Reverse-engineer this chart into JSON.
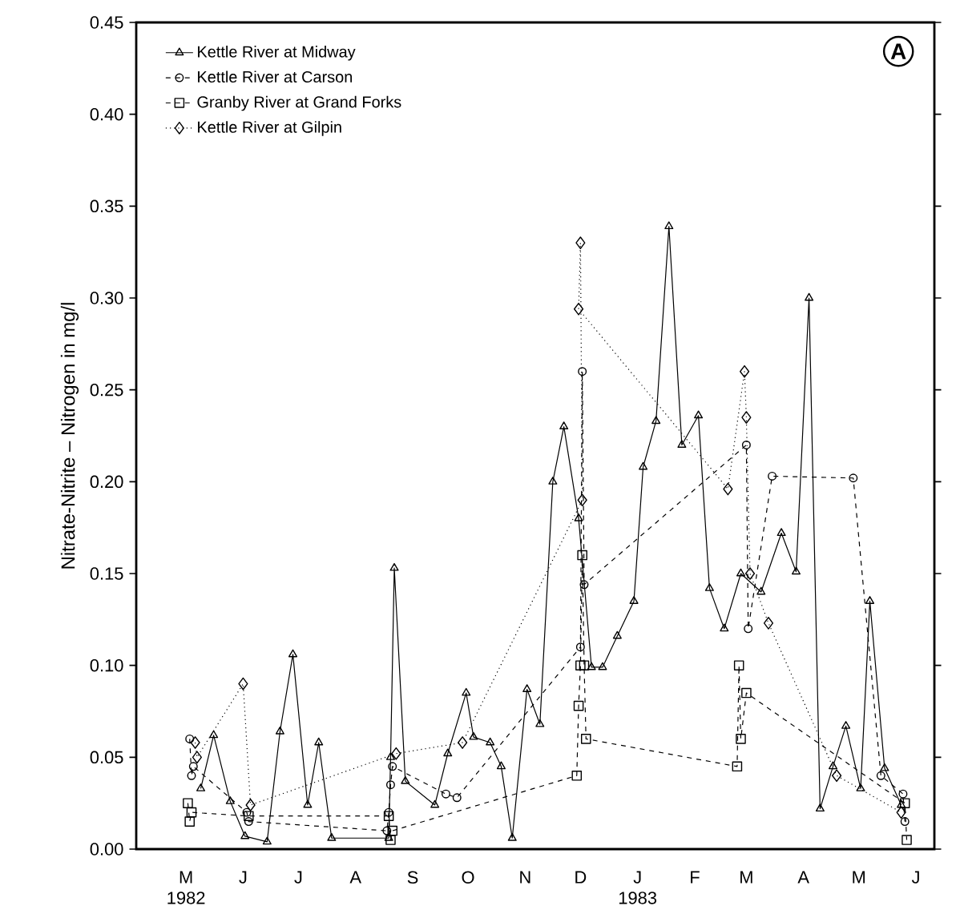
{
  "chart_data": {
    "type": "line",
    "ylabel": "Nitrate-Nitrite – Nitrogen in mg/l",
    "annotations": [
      "A"
    ],
    "xlim": [
      "1982-04-04",
      "1983-06-11"
    ],
    "xticks": [
      {
        "value": "1982-05-01",
        "label": "M 1982"
      },
      {
        "value": "1982-06-01",
        "label": "J"
      },
      {
        "value": "1982-07-01",
        "label": "J"
      },
      {
        "value": "1982-08-01",
        "label": "A"
      },
      {
        "value": "1982-09-01",
        "label": "S"
      },
      {
        "value": "1982-10-01",
        "label": "O"
      },
      {
        "value": "1982-11-01",
        "label": "N"
      },
      {
        "value": "1982-12-01",
        "label": "D"
      },
      {
        "value": "1983-01-01",
        "label": "J 1983"
      },
      {
        "value": "1983-02-01",
        "label": "F"
      },
      {
        "value": "1983-03-01",
        "label": "M"
      },
      {
        "value": "1983-04-01",
        "label": "A"
      },
      {
        "value": "1983-05-01",
        "label": "M"
      },
      {
        "value": "1983-06-01",
        "label": "J"
      }
    ],
    "ylim": [
      0,
      0.45
    ],
    "yticks": [
      {
        "value": 0,
        "label": "0.00"
      },
      0.05,
      {
        "value": 0.1,
        "label": "0.10"
      },
      0.15,
      {
        "value": 0.2,
        "label": "0.20"
      },
      0.25,
      {
        "value": 0.3,
        "label": "0.30"
      },
      0.35,
      {
        "value": 0.4,
        "label": "0.40"
      },
      0.45
    ],
    "legend": "top left",
    "grid": false,
    "series": [
      {
        "name": "Kettle River at Midway",
        "color": "#000000",
        "marker": "triangle",
        "line_style": "solid",
        "x": [
          "1982-05-09",
          "1982-05-16",
          "1982-05-25",
          "1982-06-02",
          "1982-06-14",
          "1982-06-21",
          "1982-06-28",
          "1982-07-06",
          "1982-07-12",
          "1982-07-19",
          "1982-08-19",
          "1982-08-20",
          "1982-08-22",
          "1982-08-28",
          "1982-09-13",
          "1982-09-20",
          "1982-09-30",
          "1982-10-04",
          "1982-10-13",
          "1982-10-19",
          "1982-10-25",
          "1982-11-02",
          "1982-11-09",
          "1982-11-16",
          "1982-11-22",
          "1982-11-30",
          "1982-12-07",
          "1982-12-13",
          "1982-12-21",
          "1982-12-30",
          "1983-01-04",
          "1983-01-11",
          "1983-01-18",
          "1983-01-25",
          "1983-02-03",
          "1983-02-09",
          "1983-02-17",
          "1983-02-26",
          "1983-03-09",
          "1983-03-20",
          "1983-03-28",
          "1983-04-04",
          "1983-04-10",
          "1983-04-17",
          "1983-04-24",
          "1983-05-02",
          "1983-05-07",
          "1983-05-15",
          "1983-05-24"
        ],
        "values": [
          0.033,
          0.062,
          0.026,
          0.007,
          0.004,
          0.064,
          0.106,
          0.024,
          0.058,
          0.006,
          0.006,
          0.05,
          0.153,
          0.037,
          0.024,
          0.052,
          0.085,
          0.061,
          0.058,
          0.045,
          0.006,
          0.087,
          0.068,
          0.2,
          0.23,
          0.18,
          0.099,
          0.099,
          0.116,
          0.135,
          0.208,
          0.233,
          0.339,
          0.22,
          0.236,
          0.142,
          0.12,
          0.15,
          0.14,
          0.172,
          0.151,
          0.3,
          0.022,
          0.045,
          0.067,
          0.033,
          0.135,
          0.044,
          0.024
        ]
      },
      {
        "name": "Kettle River at Carson",
        "color": "#000000",
        "marker": "circle",
        "line_style": "dashed",
        "x": [
          "1982-05-03",
          "1982-05-04",
          "1982-05-05",
          "1982-06-03",
          "1982-06-04",
          "1982-08-18",
          "1982-08-19",
          "1982-08-20",
          "1982-08-21",
          "1982-09-19",
          "1982-09-25",
          "1982-12-01",
          "1982-12-02",
          "1982-12-03",
          "1983-03-01",
          "1983-03-02",
          "1983-03-15",
          "1983-04-28",
          "1983-05-13",
          "1983-05-25",
          "1983-05-26"
        ],
        "values": [
          0.06,
          0.04,
          0.045,
          0.02,
          0.015,
          0.01,
          0.02,
          0.035,
          0.045,
          0.03,
          0.028,
          0.11,
          0.26,
          0.144,
          0.22,
          0.12,
          0.203,
          0.202,
          0.04,
          0.03,
          0.015
        ]
      },
      {
        "name": "Granby River at Grand Forks",
        "color": "#000000",
        "marker": "square",
        "line_style": "dashed",
        "x": [
          "1982-05-02",
          "1982-05-03",
          "1982-05-04",
          "1982-06-04",
          "1982-08-19",
          "1982-08-20",
          "1982-08-21",
          "1982-11-29",
          "1982-11-30",
          "1982-12-01",
          "1982-12-02",
          "1982-12-03",
          "1982-12-04",
          "1983-02-24",
          "1983-02-25",
          "1983-02-26",
          "1983-03-01",
          "1983-05-26",
          "1983-05-27"
        ],
        "values": [
          0.025,
          0.015,
          0.02,
          0.018,
          0.018,
          0.005,
          0.01,
          0.04,
          0.078,
          0.1,
          0.16,
          0.1,
          0.06,
          0.045,
          0.1,
          0.06,
          0.085,
          0.025,
          0.005
        ]
      },
      {
        "name": "Kettle River at Gilpin",
        "color": "#000000",
        "marker": "diamond",
        "line_style": "dotted",
        "x": [
          "1982-05-06",
          "1982-05-07",
          "1982-06-01",
          "1982-06-05",
          "1982-08-23",
          "1982-09-28",
          "1982-12-02",
          "1982-12-01",
          "1982-11-30",
          "1983-02-19",
          "1983-02-28",
          "1983-03-01",
          "1983-03-03",
          "1983-03-13",
          "1983-04-19",
          "1983-05-24"
        ],
        "values": [
          0.058,
          0.05,
          0.09,
          0.024,
          0.052,
          0.058,
          0.19,
          0.33,
          0.294,
          0.196,
          0.26,
          0.235,
          0.15,
          0.123,
          0.04,
          0.02
        ]
      }
    ]
  }
}
